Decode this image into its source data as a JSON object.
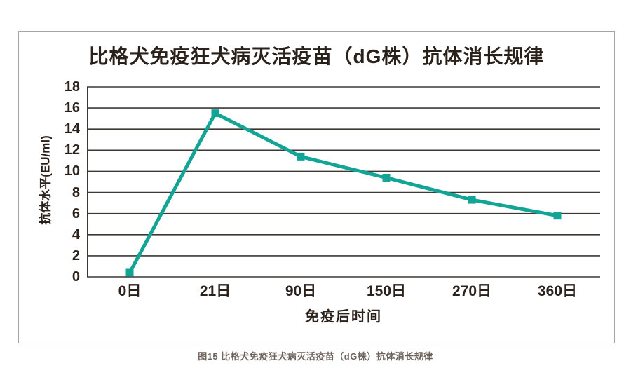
{
  "figure": {
    "caption": "图15 比格犬免疫狂犬病灭活疫苗（dG株）抗体消长规律"
  },
  "chart_data": {
    "type": "line",
    "title": "比格犬免疫狂犬病灭活疫苗（dG株）抗体消长规律",
    "categories": [
      "0日",
      "21日",
      "90日",
      "150日",
      "270日",
      "360日"
    ],
    "values": [
      0.4,
      15.5,
      11.4,
      9.4,
      7.3,
      5.8
    ],
    "xlabel": "免疫后时间",
    "ylabel": "抗体水平(EU/ml)",
    "ylim": [
      0,
      18
    ],
    "yticks": [
      0,
      2,
      4,
      6,
      8,
      10,
      12,
      14,
      16,
      18
    ],
    "grid": true,
    "legend_position": "none",
    "line_color": "#12a495",
    "marker": "square",
    "gridline_color": "#3f3733",
    "text_color": "#2b211b",
    "border_color": "#aaa5a2"
  }
}
